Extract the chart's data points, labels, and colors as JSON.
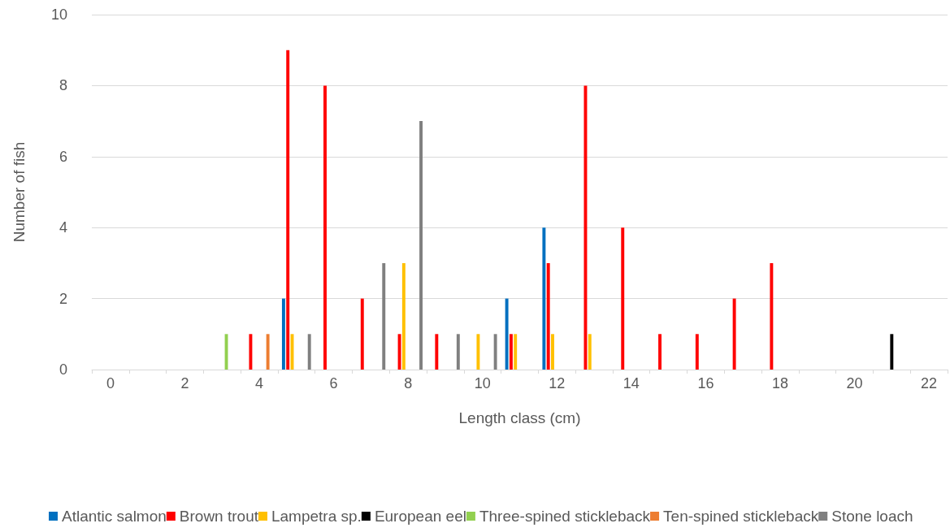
{
  "chart_data": {
    "type": "bar",
    "xlabel": "Length class (cm)",
    "ylabel": "Number of fish",
    "categories": [
      "0",
      null,
      "2",
      null,
      "4",
      null,
      "6",
      null,
      "8",
      null,
      "10",
      null,
      "12",
      null,
      "14",
      null,
      "16",
      null,
      "18",
      null,
      "20",
      null,
      "22"
    ],
    "series": [
      {
        "name": "Atlantic salmon",
        "color": "#0070c0",
        "values": [
          0,
          0,
          0,
          0,
          0,
          2,
          0,
          0,
          0,
          0,
          0,
          2,
          4,
          0,
          0,
          0,
          0,
          0,
          0,
          0,
          0,
          0,
          0
        ]
      },
      {
        "name": "Brown trout",
        "color": "#ff0000",
        "values": [
          0,
          0,
          0,
          0,
          1,
          9,
          8,
          2,
          1,
          1,
          0,
          1,
          3,
          8,
          4,
          1,
          1,
          2,
          3,
          0,
          0,
          0,
          0
        ]
      },
      {
        "name": "Lampetra sp.",
        "color": "#ffc000",
        "values": [
          0,
          0,
          0,
          0,
          0,
          1,
          0,
          0,
          3,
          0,
          1,
          1,
          1,
          1,
          0,
          0,
          0,
          0,
          0,
          0,
          0,
          0,
          0
        ]
      },
      {
        "name": "European eel",
        "color": "#000000",
        "values": [
          0,
          0,
          0,
          0,
          0,
          0,
          0,
          0,
          0,
          0,
          0,
          0,
          0,
          0,
          0,
          0,
          0,
          0,
          0,
          0,
          0,
          1,
          0
        ]
      },
      {
        "name": "Three-spined stickleback",
        "color": "#92d050",
        "values": [
          0,
          0,
          0,
          1,
          0,
          0,
          0,
          0,
          0,
          0,
          0,
          0,
          0,
          0,
          0,
          0,
          0,
          0,
          0,
          0,
          0,
          0,
          0
        ]
      },
      {
        "name": "Ten-spined stickleback",
        "color": "#ed7d31",
        "values": [
          0,
          0,
          0,
          0,
          1,
          0,
          0,
          0,
          0,
          0,
          0,
          0,
          0,
          0,
          0,
          0,
          0,
          0,
          0,
          0,
          0,
          0,
          0
        ]
      },
      {
        "name": "Stone loach",
        "color": "#808080",
        "values": [
          0,
          0,
          0,
          0,
          0,
          1,
          0,
          3,
          7,
          1,
          1,
          0,
          0,
          0,
          0,
          0,
          0,
          0,
          0,
          0,
          0,
          0,
          0
        ]
      }
    ],
    "ylim": [
      0,
      10
    ],
    "yticks": [
      0,
      2,
      4,
      6,
      8,
      10
    ],
    "grid": "y",
    "legend": "bottom"
  }
}
